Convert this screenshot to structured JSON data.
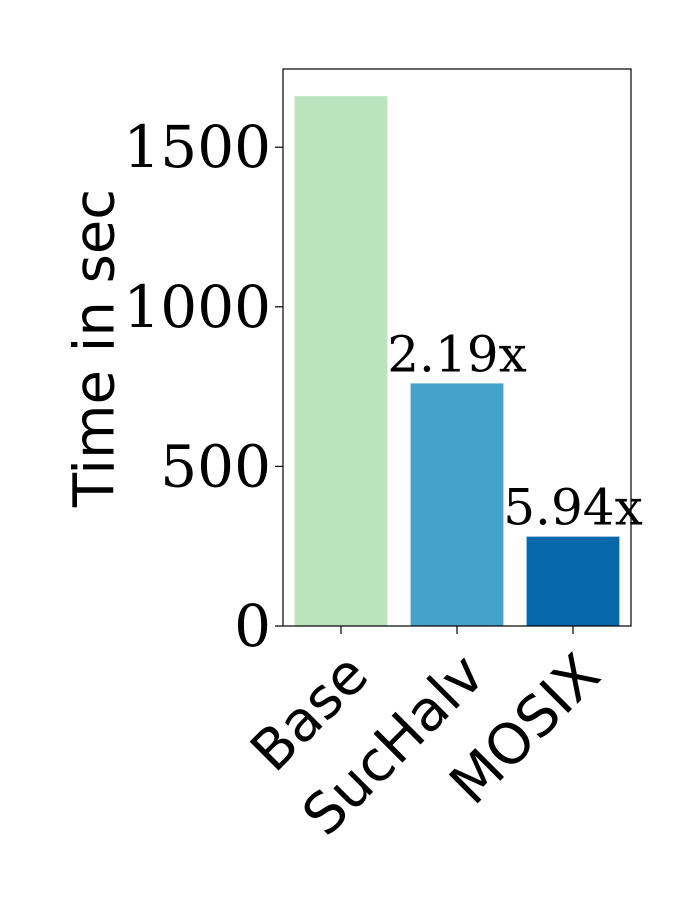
{
  "chart_data": {
    "type": "bar",
    "categories": [
      "Base",
      "SucHalv",
      "MOSIX"
    ],
    "values": [
      1660,
      760,
      280
    ],
    "bar_labels": [
      "",
      "2.19x",
      "5.94x"
    ],
    "colors": [
      "#bae4bc",
      "#43a2ca",
      "#0868ac"
    ],
    "xlabel": "",
    "ylabel": "Time in sec",
    "yticks": [
      0,
      500,
      1000,
      1500
    ],
    "ylim": [
      0,
      1745
    ],
    "grid": false
  }
}
